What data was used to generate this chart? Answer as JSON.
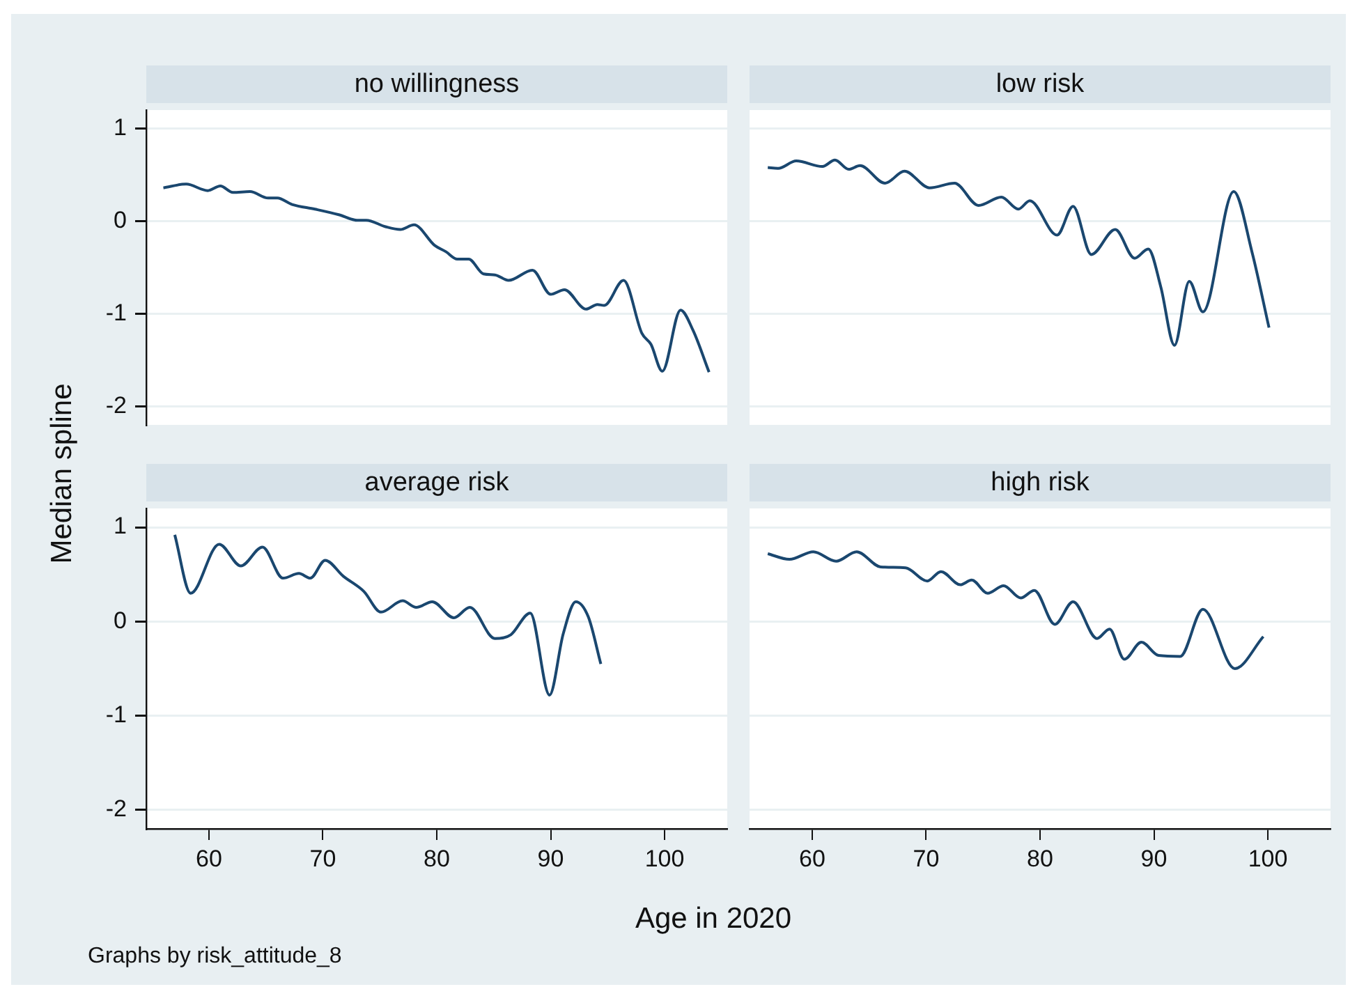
{
  "chart_data": [
    {
      "type": "line",
      "title": "no willingness",
      "ylabel": "Median spline",
      "color": "#1a476f",
      "line_style": "solid",
      "grid": "y",
      "tick_labels": "y",
      "xlim": [
        54.5,
        105.5
      ],
      "xticks": [
        60,
        70,
        80,
        90,
        100
      ],
      "ylim": [
        -2.2,
        1.2
      ],
      "yticks": [
        -2,
        -1,
        0,
        1
      ],
      "x": [
        56.0,
        58.0,
        59.9,
        61.0,
        62.1,
        63.6,
        65.2,
        66.0,
        67.3,
        69.3,
        71.4,
        73.0,
        73.8,
        75.5,
        76.8,
        78.0,
        79.8,
        80.8,
        81.8,
        82.8,
        84.1,
        85.1,
        86.3,
        88.4,
        90.0,
        91.2,
        93.1,
        94.1,
        94.7,
        96.4,
        98.0,
        98.8,
        99.8,
        101.4,
        102.5,
        103.9
      ],
      "values": [
        0.36,
        0.4,
        0.33,
        0.38,
        0.31,
        0.32,
        0.25,
        0.25,
        0.18,
        0.13,
        0.07,
        0.01,
        0.01,
        -0.06,
        -0.09,
        -0.04,
        -0.26,
        -0.33,
        -0.41,
        -0.41,
        -0.57,
        -0.58,
        -0.64,
        -0.53,
        -0.79,
        -0.74,
        -0.95,
        -0.9,
        -0.91,
        -0.64,
        -1.21,
        -1.33,
        -1.62,
        -0.96,
        -1.18,
        -1.63
      ]
    },
    {
      "type": "line",
      "title": "low risk",
      "color": "#1a476f",
      "line_style": "solid",
      "grid": "y",
      "tick_labels": false,
      "xlim": [
        54.5,
        105.5
      ],
      "xticks": [
        60,
        70,
        80,
        90,
        100
      ],
      "ylim": [
        -2.2,
        1.2
      ],
      "yticks": [
        -2,
        -1,
        0,
        1
      ],
      "x": [
        56.1,
        57.0,
        58.6,
        60.9,
        62.0,
        63.2,
        64.2,
        66.4,
        68.1,
        70.3,
        72.5,
        74.6,
        76.6,
        78.1,
        79.1,
        81.5,
        82.9,
        84.5,
        86.6,
        88.3,
        89.5,
        90.6,
        91.8,
        93.1,
        94.3,
        97.0,
        98.6,
        100.1
      ],
      "values": [
        0.58,
        0.57,
        0.65,
        0.59,
        0.66,
        0.56,
        0.6,
        0.41,
        0.54,
        0.36,
        0.41,
        0.17,
        0.26,
        0.13,
        0.22,
        -0.15,
        0.16,
        -0.36,
        -0.09,
        -0.4,
        -0.3,
        -0.71,
        -1.34,
        -0.65,
        -0.98,
        0.32,
        -0.33,
        -1.15
      ]
    },
    {
      "type": "line",
      "title": "average risk",
      "xlabel": "Age in 2020",
      "annotations": [
        "Graphs by risk_attitude_8"
      ],
      "color": "#1a476f",
      "line_style": "solid",
      "grid": "y",
      "xlim": [
        54.5,
        105.5
      ],
      "xticks": [
        60,
        70,
        80,
        90,
        100
      ],
      "ylim": [
        -2.2,
        1.2
      ],
      "yticks": [
        -2,
        -1,
        0,
        1
      ],
      "x": [
        57.0,
        58.4,
        60.9,
        62.8,
        64.7,
        66.5,
        67.9,
        68.9,
        70.2,
        71.8,
        73.6,
        75.1,
        77.0,
        78.2,
        79.6,
        81.5,
        82.9,
        85.1,
        86.5,
        88.2,
        89.9,
        91.1,
        92.2,
        93.3,
        94.4
      ],
      "values": [
        0.92,
        0.3,
        0.82,
        0.59,
        0.79,
        0.46,
        0.51,
        0.46,
        0.65,
        0.48,
        0.32,
        0.1,
        0.22,
        0.15,
        0.21,
        0.04,
        0.15,
        -0.18,
        -0.14,
        0.09,
        -0.78,
        -0.13,
        0.21,
        0.05,
        -0.45
      ]
    },
    {
      "type": "line",
      "title": "high risk",
      "color": "#1a476f",
      "line_style": "solid",
      "grid": "y",
      "tick_labels": "x",
      "xlim": [
        54.5,
        105.5
      ],
      "xticks": [
        60,
        70,
        80,
        90,
        100
      ],
      "ylim": [
        -2.2,
        1.2
      ],
      "yticks": [
        -2,
        -1,
        0,
        1
      ],
      "x": [
        56.1,
        58.0,
        60.1,
        62.1,
        63.9,
        66.0,
        68.2,
        70.1,
        71.3,
        73.0,
        74.0,
        75.4,
        76.8,
        78.3,
        79.5,
        81.3,
        82.9,
        85.0,
        86.1,
        87.4,
        88.9,
        90.4,
        92.3,
        94.3,
        97.1,
        99.6
      ],
      "values": [
        0.72,
        0.66,
        0.74,
        0.64,
        0.74,
        0.58,
        0.57,
        0.43,
        0.53,
        0.39,
        0.44,
        0.3,
        0.38,
        0.25,
        0.33,
        -0.03,
        0.21,
        -0.18,
        -0.08,
        -0.4,
        -0.22,
        -0.36,
        -0.37,
        0.13,
        -0.5,
        -0.16
      ]
    }
  ]
}
